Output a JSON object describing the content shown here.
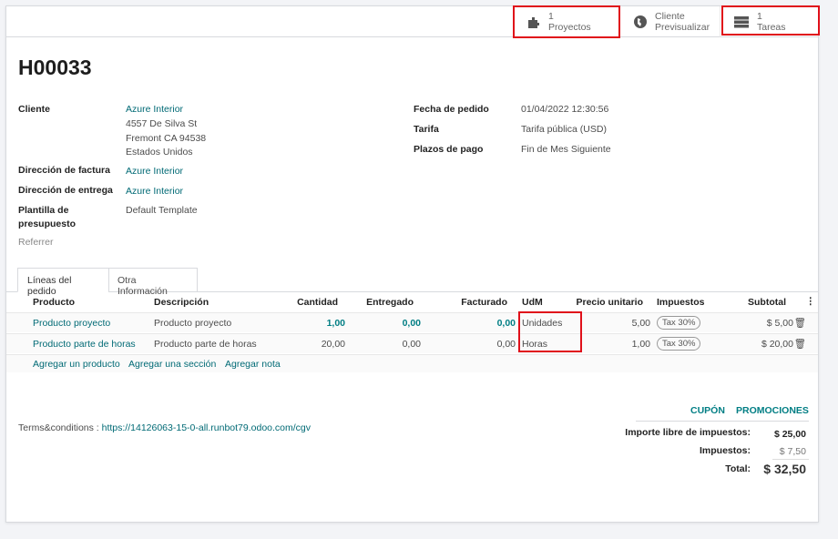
{
  "smart_buttons": [
    {
      "count": "1",
      "label": "Proyectos",
      "icon": "puzzle-icon"
    },
    {
      "count": "",
      "label": "Cliente",
      "sub": "Previsualizar",
      "icon": "globe-icon"
    },
    {
      "count": "1",
      "label": "Tareas",
      "icon": "tasks-icon"
    }
  ],
  "title": "H00033",
  "fields": {
    "cliente_label": "Cliente",
    "cliente_name": "Azure Interior",
    "cliente_addr1": "4557 De Silva St",
    "cliente_addr2": "Fremont CA 94538",
    "cliente_addr3": "Estados Unidos",
    "factura_label": "Dirección de factura",
    "factura": "Azure Interior",
    "entrega_label": "Dirección de entrega",
    "entrega": "Azure Interior",
    "plantilla_label1": "Plantilla de",
    "plantilla_label2": "presupuesto",
    "plantilla": "Default Template",
    "referrer_label": "Referrer",
    "fecha_label": "Fecha de pedido",
    "fecha": "01/04/2022 12:30:56",
    "tarifa_label": "Tarifa",
    "tarifa": "Tarifa pública (USD)",
    "plazos_label": "Plazos de pago",
    "plazos": "Fin de Mes Siguiente"
  },
  "tabs": [
    "Líneas del pedido",
    "Otra Información"
  ],
  "table": {
    "headers": [
      "Producto",
      "Descripción",
      "Cantidad",
      "Entregado",
      "Facturado",
      "UdM",
      "Precio unitario",
      "Impuestos",
      "Subtotal"
    ],
    "rows": [
      [
        "Producto proyecto",
        "Producto proyecto",
        "1,00",
        "0,00",
        "0,00",
        "Unidades",
        "5,00",
        "Tax 30%",
        "$ 5,00"
      ],
      [
        "Producto parte de horas",
        "Producto parte de horas",
        "20,00",
        "0,00",
        "0,00",
        "Horas",
        "1,00",
        "Tax 30%",
        "$ 20,00"
      ]
    ],
    "actions": [
      "Agregar un producto",
      "Agregar una sección",
      "Agregar nota"
    ]
  },
  "buttons": {
    "coupon": "CUPÓN",
    "promo": "PROMOCIONES"
  },
  "terms_label": "Terms&conditions : ",
  "terms_link": "https://14126063-15-0-all.runbot79.odoo.com/cgv",
  "totals": {
    "untaxed_label": "Importe libre de impuestos:",
    "untaxed": "$ 25,00",
    "tax_label": "Impuestos:",
    "tax": "$ 7,50",
    "total_label": "Total:",
    "total": "$ 32,50"
  },
  "colors": {
    "accent": "#017e84",
    "highlight": "#e0101a"
  }
}
